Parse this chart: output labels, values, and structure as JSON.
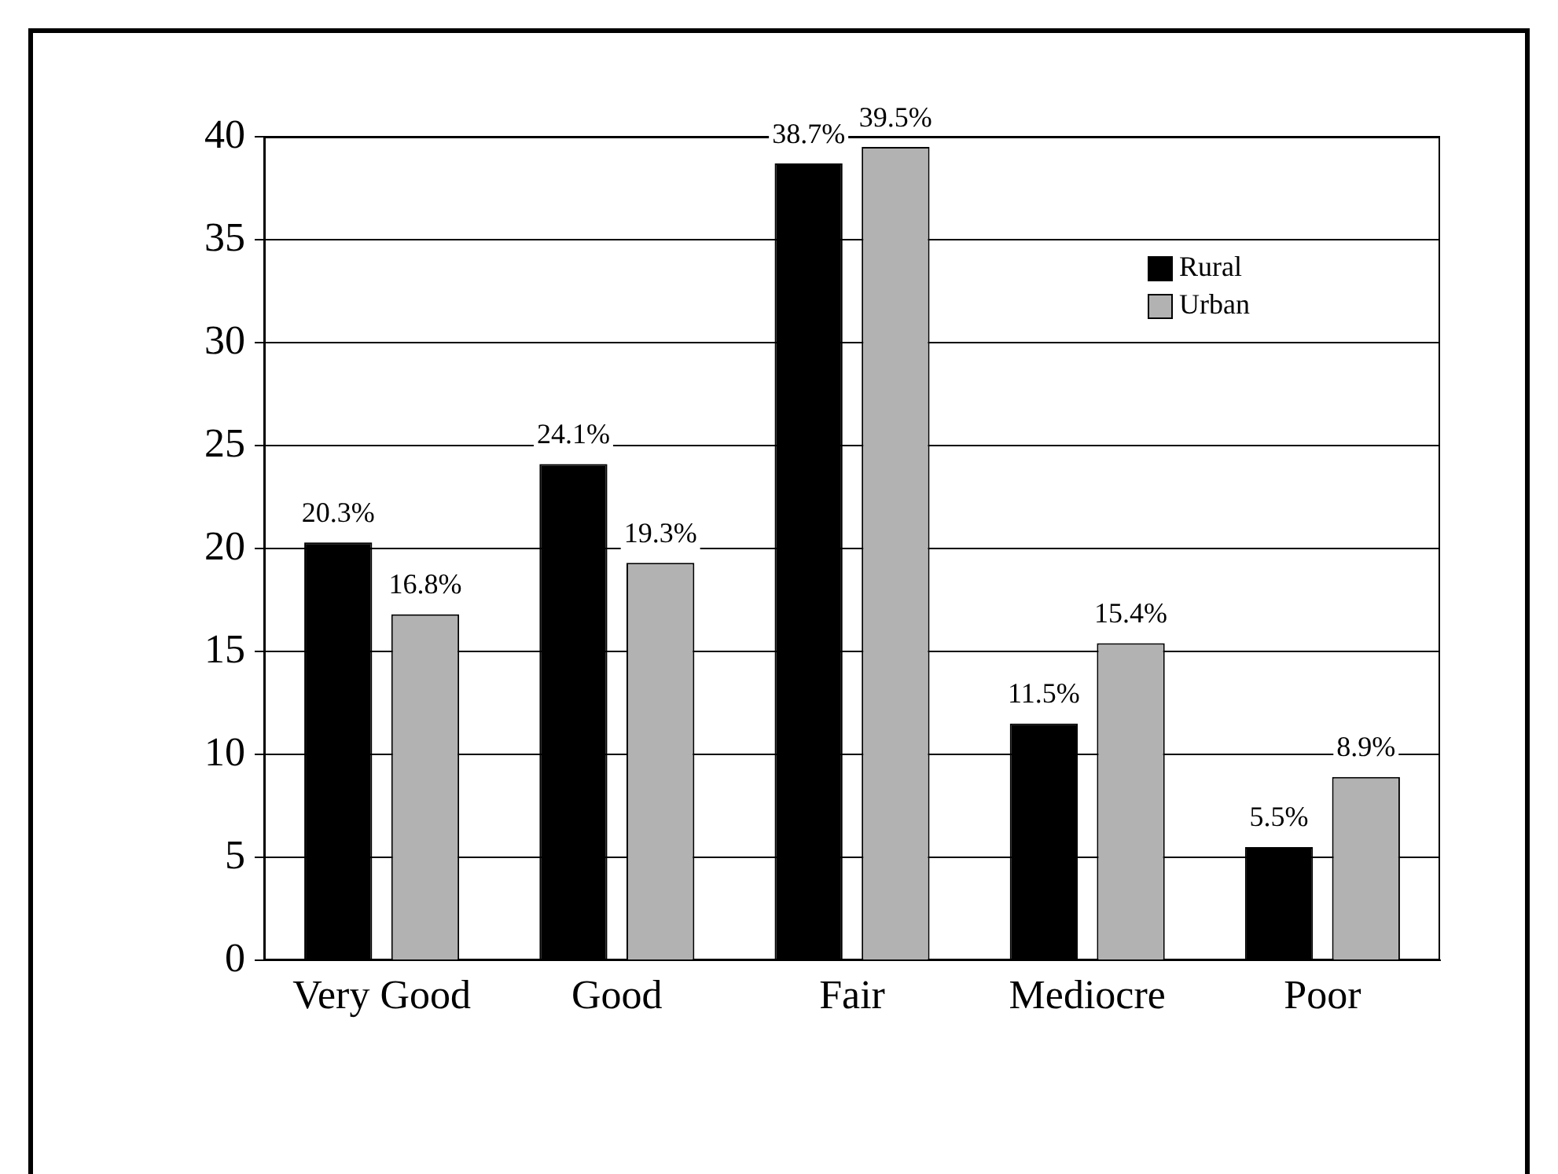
{
  "chart_data": {
    "type": "bar",
    "categories": [
      "Very Good",
      "Good",
      "Fair",
      "Mediocre",
      "Poor"
    ],
    "series": [
      {
        "name": "Rural",
        "color": "#000000",
        "values": [
          20.3,
          24.1,
          38.7,
          11.5,
          5.5
        ],
        "value_labels": [
          "20.3%",
          "24.1%",
          "38.7%",
          "11.5%",
          "5.5%"
        ]
      },
      {
        "name": "Urban",
        "color": "#b2b2b2",
        "values": [
          16.8,
          19.3,
          39.5,
          15.4,
          8.9
        ],
        "value_labels": [
          "16.8%",
          "19.3%",
          "39.5%",
          "15.4%",
          "8.9%"
        ]
      }
    ],
    "ylim": [
      0,
      40
    ],
    "yticks": [
      0,
      5,
      10,
      15,
      20,
      25,
      30,
      35,
      40
    ],
    "grid": "y",
    "legend": "top right"
  }
}
